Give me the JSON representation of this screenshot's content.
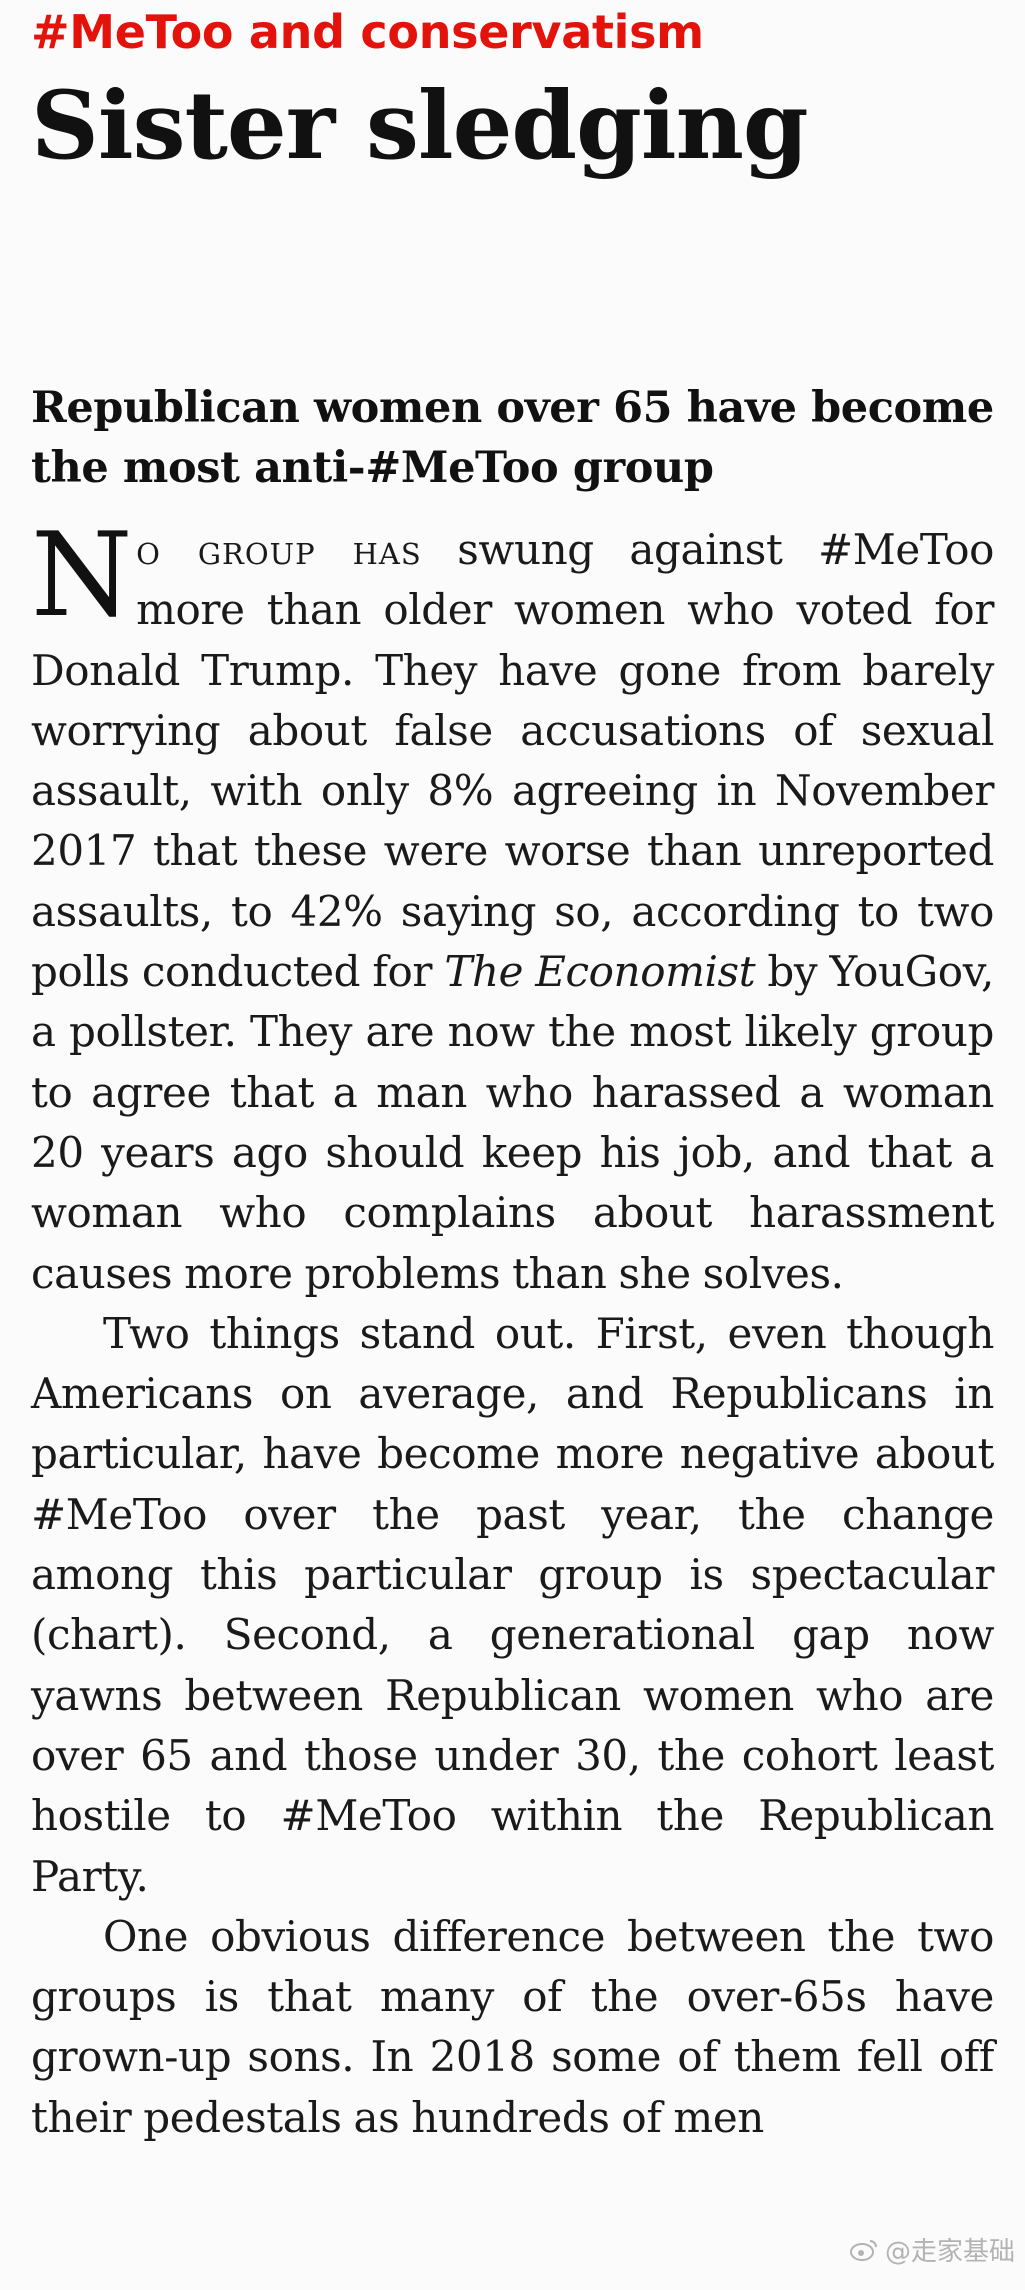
{
  "article": {
    "fly_title": "#MeToo and conservatism",
    "headline": "Sister sledging",
    "rubric": "Republican women over 65 have become the most anti-#MeToo group",
    "p1_dropcap": "N",
    "p1_smallcaps": "o group has",
    "p1_a": " swung against #MeToo more than older women who voted for Donald Trump. They have gone from barely worrying about false accusations of sexual assault, with only 8% agreeing in November 2017 that these were worse than unreported assaults, to 42% saying so, according to two polls conducted for ",
    "p1_italic": "The Economist",
    "p1_b": " by YouGov, a pollster. They are now the most likely group to agree that a man who harassed a woman 20 years ago should keep his job, and that a woman who complains about harassment causes more problems than she solves.",
    "p2": "Two things stand out. First, even though Americans on average, and Republicans in particular, have become more negative about #MeToo over the past year, the change among this particular group is spectacular (chart). Second, a generational gap now yawns between Republican women who are over 65 and those under 30, the cohort least hostile to #MeToo within the Republican Party.",
    "p3": "One obvious difference between the two groups is that many of the over-65s have grown-up sons. In 2018 some of them fell off their pedestals as hundreds of men"
  },
  "watermark": {
    "icon": "weibo-icon",
    "text": "@走家基础"
  }
}
